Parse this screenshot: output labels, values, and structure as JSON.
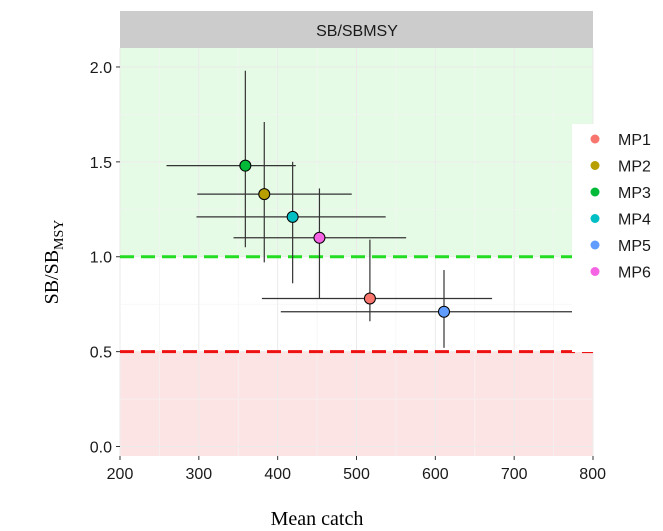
{
  "chart_data": {
    "type": "scatter",
    "facet_title": "SB/SBMSY",
    "xlabel": "Mean catch",
    "ylabel": "SB/SB",
    "ylabel_sub": "MSY",
    "xlim": [
      200,
      800
    ],
    "ylim": [
      -0.05,
      2.1
    ],
    "x_ticks": [
      200,
      300,
      400,
      500,
      600,
      700,
      800
    ],
    "y_ticks": [
      0.0,
      0.5,
      1.0,
      1.5,
      2.0
    ],
    "y_tick_labels": [
      "0.0",
      "0.5",
      "1.0",
      "1.5",
      "2.0"
    ],
    "grid": true,
    "zones": [
      {
        "y0": 1.0,
        "y1": 2.1,
        "color": "#e6fbe6"
      },
      {
        "y0": -0.05,
        "y1": 0.5,
        "color": "#fde4e4"
      }
    ],
    "reference_lines": [
      {
        "y": 1.0,
        "color": "#22dd22"
      },
      {
        "y": 0.5,
        "color": "#ee1111"
      }
    ],
    "legend_position": "right",
    "series": [
      {
        "name": "MP1",
        "x": 517,
        "y": 0.78,
        "x_err": [
          380,
          672
        ],
        "y_err": [
          0.66,
          1.09
        ],
        "color": "#f8766d"
      },
      {
        "name": "MP2",
        "x": 383,
        "y": 1.33,
        "x_err": [
          298,
          494
        ],
        "y_err": [
          0.97,
          1.71
        ],
        "color": "#b79f00"
      },
      {
        "name": "MP3",
        "x": 359,
        "y": 1.48,
        "x_err": [
          259,
          423
        ],
        "y_err": [
          1.05,
          1.98
        ],
        "color": "#00ba38"
      },
      {
        "name": "MP4",
        "x": 419,
        "y": 1.21,
        "x_err": [
          297,
          537
        ],
        "y_err": [
          0.86,
          1.5
        ],
        "color": "#00bfc4"
      },
      {
        "name": "MP5",
        "x": 611,
        "y": 0.71,
        "x_err": [
          404,
          790
        ],
        "y_err": [
          0.52,
          0.93
        ],
        "color": "#619cff"
      },
      {
        "name": "MP6",
        "x": 453,
        "y": 1.1,
        "x_err": [
          344,
          563
        ],
        "y_err": [
          0.78,
          1.36
        ],
        "color": "#f564e3"
      }
    ]
  }
}
